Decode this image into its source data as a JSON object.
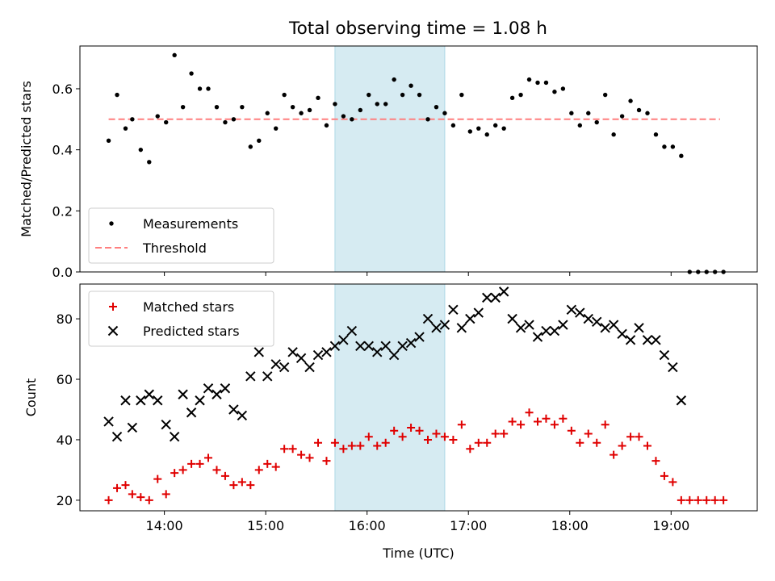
{
  "title": "Total observing time = 1.08 h",
  "colors": {
    "measurement": "#000000",
    "threshold": "#ff7f7f",
    "matched": "#e00000",
    "predicted": "#000000",
    "shade": "#add8e6"
  },
  "chart_data": [
    {
      "type": "scatter",
      "ylabel": "Matched/Predicted stars",
      "ylim": [
        0,
        0.74
      ],
      "yticks": [
        "0.0",
        "0.2",
        "0.4",
        "0.6"
      ],
      "shaded_interval": [
        "15:41",
        "16:46"
      ],
      "legend": {
        "placement": "lower-left",
        "entries": [
          "Measurements",
          "Threshold"
        ]
      },
      "threshold": {
        "value": 0.5,
        "x_start": "13:27",
        "x_end": "19:29"
      },
      "series": [
        {
          "name": "Measurements",
          "marker": "dot",
          "points": [
            [
              "13:27",
              0.43
            ],
            [
              "13:32",
              0.58
            ],
            [
              "13:37",
              0.47
            ],
            [
              "13:41",
              0.5
            ],
            [
              "13:46",
              0.4
            ],
            [
              "13:51",
              0.36
            ],
            [
              "13:56",
              0.51
            ],
            [
              "14:01",
              0.49
            ],
            [
              "14:06",
              0.71
            ],
            [
              "14:11",
              0.54
            ],
            [
              "14:16",
              0.65
            ],
            [
              "14:21",
              0.6
            ],
            [
              "14:26",
              0.6
            ],
            [
              "14:31",
              0.54
            ],
            [
              "14:36",
              0.49
            ],
            [
              "14:41",
              0.5
            ],
            [
              "14:46",
              0.54
            ],
            [
              "14:51",
              0.41
            ],
            [
              "14:56",
              0.43
            ],
            [
              "15:01",
              0.52
            ],
            [
              "15:06",
              0.47
            ],
            [
              "15:11",
              0.58
            ],
            [
              "15:16",
              0.54
            ],
            [
              "15:21",
              0.52
            ],
            [
              "15:26",
              0.53
            ],
            [
              "15:31",
              0.57
            ],
            [
              "15:36",
              0.48
            ],
            [
              "15:41",
              0.55
            ],
            [
              "15:46",
              0.51
            ],
            [
              "15:51",
              0.5
            ],
            [
              "15:56",
              0.53
            ],
            [
              "16:01",
              0.58
            ],
            [
              "16:06",
              0.55
            ],
            [
              "16:11",
              0.55
            ],
            [
              "16:16",
              0.63
            ],
            [
              "16:21",
              0.58
            ],
            [
              "16:26",
              0.61
            ],
            [
              "16:31",
              0.58
            ],
            [
              "16:36",
              0.5
            ],
            [
              "16:41",
              0.54
            ],
            [
              "16:46",
              0.52
            ],
            [
              "16:51",
              0.48
            ],
            [
              "16:56",
              0.58
            ],
            [
              "17:01",
              0.46
            ],
            [
              "17:06",
              0.47
            ],
            [
              "17:11",
              0.45
            ],
            [
              "17:16",
              0.48
            ],
            [
              "17:21",
              0.47
            ],
            [
              "17:26",
              0.57
            ],
            [
              "17:31",
              0.58
            ],
            [
              "17:36",
              0.63
            ],
            [
              "17:41",
              0.62
            ],
            [
              "17:46",
              0.62
            ],
            [
              "17:51",
              0.59
            ],
            [
              "17:56",
              0.6
            ],
            [
              "18:01",
              0.52
            ],
            [
              "18:06",
              0.48
            ],
            [
              "18:11",
              0.52
            ],
            [
              "18:16",
              0.49
            ],
            [
              "18:21",
              0.58
            ],
            [
              "18:26",
              0.45
            ],
            [
              "18:31",
              0.51
            ],
            [
              "18:36",
              0.56
            ],
            [
              "18:41",
              0.53
            ],
            [
              "18:46",
              0.52
            ],
            [
              "18:51",
              0.45
            ],
            [
              "18:56",
              0.41
            ],
            [
              "19:01",
              0.41
            ],
            [
              "19:06",
              0.38
            ],
            [
              "19:11",
              0.0
            ],
            [
              "19:16",
              0.0
            ],
            [
              "19:21",
              0.0
            ],
            [
              "19:26",
              0.0
            ],
            [
              "19:31",
              0.0
            ]
          ]
        }
      ]
    },
    {
      "type": "scatter",
      "ylabel": "Count",
      "xlabel": "Time (UTC)",
      "ylim": [
        16.5,
        91.5
      ],
      "yticks": [
        "20",
        "40",
        "60",
        "80"
      ],
      "xticks": [
        "14:00",
        "15:00",
        "16:00",
        "17:00",
        "18:00",
        "19:00"
      ],
      "xlim": [
        "13:10",
        "19:51"
      ],
      "shaded_interval": [
        "15:41",
        "16:46"
      ],
      "legend": {
        "placement": "upper-left",
        "entries": [
          "Matched stars",
          "Predicted stars"
        ]
      },
      "series": [
        {
          "name": "Matched stars",
          "marker": "plus",
          "points": [
            [
              "13:27",
              20
            ],
            [
              "13:32",
              24
            ],
            [
              "13:37",
              25
            ],
            [
              "13:41",
              22
            ],
            [
              "13:46",
              21
            ],
            [
              "13:51",
              20
            ],
            [
              "13:56",
              27
            ],
            [
              "14:01",
              22
            ],
            [
              "14:06",
              29
            ],
            [
              "14:11",
              30
            ],
            [
              "14:16",
              32
            ],
            [
              "14:21",
              32
            ],
            [
              "14:26",
              34
            ],
            [
              "14:31",
              30
            ],
            [
              "14:36",
              28
            ],
            [
              "14:41",
              25
            ],
            [
              "14:46",
              26
            ],
            [
              "14:51",
              25
            ],
            [
              "14:56",
              30
            ],
            [
              "15:01",
              32
            ],
            [
              "15:06",
              31
            ],
            [
              "15:11",
              37
            ],
            [
              "15:16",
              37
            ],
            [
              "15:21",
              35
            ],
            [
              "15:26",
              34
            ],
            [
              "15:31",
              39
            ],
            [
              "15:36",
              33
            ],
            [
              "15:41",
              39
            ],
            [
              "15:46",
              37
            ],
            [
              "15:51",
              38
            ],
            [
              "15:56",
              38
            ],
            [
              "16:01",
              41
            ],
            [
              "16:06",
              38
            ],
            [
              "16:11",
              39
            ],
            [
              "16:16",
              43
            ],
            [
              "16:21",
              41
            ],
            [
              "16:26",
              44
            ],
            [
              "16:31",
              43
            ],
            [
              "16:36",
              40
            ],
            [
              "16:41",
              42
            ],
            [
              "16:46",
              41
            ],
            [
              "16:51",
              40
            ],
            [
              "16:56",
              45
            ],
            [
              "17:01",
              37
            ],
            [
              "17:06",
              39
            ],
            [
              "17:11",
              39
            ],
            [
              "17:16",
              42
            ],
            [
              "17:21",
              42
            ],
            [
              "17:26",
              46
            ],
            [
              "17:31",
              45
            ],
            [
              "17:36",
              49
            ],
            [
              "17:41",
              46
            ],
            [
              "17:46",
              47
            ],
            [
              "17:51",
              45
            ],
            [
              "17:56",
              47
            ],
            [
              "18:01",
              43
            ],
            [
              "18:06",
              39
            ],
            [
              "18:11",
              42
            ],
            [
              "18:16",
              39
            ],
            [
              "18:21",
              45
            ],
            [
              "18:26",
              35
            ],
            [
              "18:31",
              38
            ],
            [
              "18:36",
              41
            ],
            [
              "18:41",
              41
            ],
            [
              "18:46",
              38
            ],
            [
              "18:51",
              33
            ],
            [
              "18:56",
              28
            ],
            [
              "19:01",
              26
            ],
            [
              "19:06",
              20
            ],
            [
              "19:11",
              20
            ],
            [
              "19:16",
              20
            ],
            [
              "19:21",
              20
            ],
            [
              "19:26",
              20
            ],
            [
              "19:31",
              20
            ]
          ]
        },
        {
          "name": "Predicted stars",
          "marker": "x",
          "points": [
            [
              "13:27",
              46
            ],
            [
              "13:32",
              41
            ],
            [
              "13:37",
              53
            ],
            [
              "13:41",
              44
            ],
            [
              "13:46",
              53
            ],
            [
              "13:51",
              55
            ],
            [
              "13:56",
              53
            ],
            [
              "14:01",
              45
            ],
            [
              "14:06",
              41
            ],
            [
              "14:11",
              55
            ],
            [
              "14:16",
              49
            ],
            [
              "14:21",
              53
            ],
            [
              "14:26",
              57
            ],
            [
              "14:31",
              55
            ],
            [
              "14:36",
              57
            ],
            [
              "14:41",
              50
            ],
            [
              "14:46",
              48
            ],
            [
              "14:51",
              61
            ],
            [
              "14:56",
              69
            ],
            [
              "15:01",
              61
            ],
            [
              "15:06",
              65
            ],
            [
              "15:11",
              64
            ],
            [
              "15:16",
              69
            ],
            [
              "15:21",
              67
            ],
            [
              "15:26",
              64
            ],
            [
              "15:31",
              68
            ],
            [
              "15:36",
              69
            ],
            [
              "15:41",
              71
            ],
            [
              "15:46",
              73
            ],
            [
              "15:51",
              76
            ],
            [
              "15:56",
              71
            ],
            [
              "16:01",
              71
            ],
            [
              "16:06",
              69
            ],
            [
              "16:11",
              71
            ],
            [
              "16:16",
              68
            ],
            [
              "16:21",
              71
            ],
            [
              "16:26",
              72
            ],
            [
              "16:31",
              74
            ],
            [
              "16:36",
              80
            ],
            [
              "16:41",
              77
            ],
            [
              "16:46",
              78
            ],
            [
              "16:51",
              83
            ],
            [
              "16:56",
              77
            ],
            [
              "17:01",
              80
            ],
            [
              "17:06",
              82
            ],
            [
              "17:11",
              87
            ],
            [
              "17:16",
              87
            ],
            [
              "17:21",
              89
            ],
            [
              "17:26",
              80
            ],
            [
              "17:31",
              77
            ],
            [
              "17:36",
              78
            ],
            [
              "17:41",
              74
            ],
            [
              "17:46",
              76
            ],
            [
              "17:51",
              76
            ],
            [
              "17:56",
              78
            ],
            [
              "18:01",
              83
            ],
            [
              "18:06",
              82
            ],
            [
              "18:11",
              80
            ],
            [
              "18:16",
              79
            ],
            [
              "18:21",
              77
            ],
            [
              "18:26",
              78
            ],
            [
              "18:31",
              75
            ],
            [
              "18:36",
              73
            ],
            [
              "18:41",
              77
            ],
            [
              "18:46",
              73
            ],
            [
              "18:51",
              73
            ],
            [
              "18:56",
              68
            ],
            [
              "19:01",
              64
            ],
            [
              "19:06",
              53
            ]
          ]
        }
      ]
    }
  ]
}
